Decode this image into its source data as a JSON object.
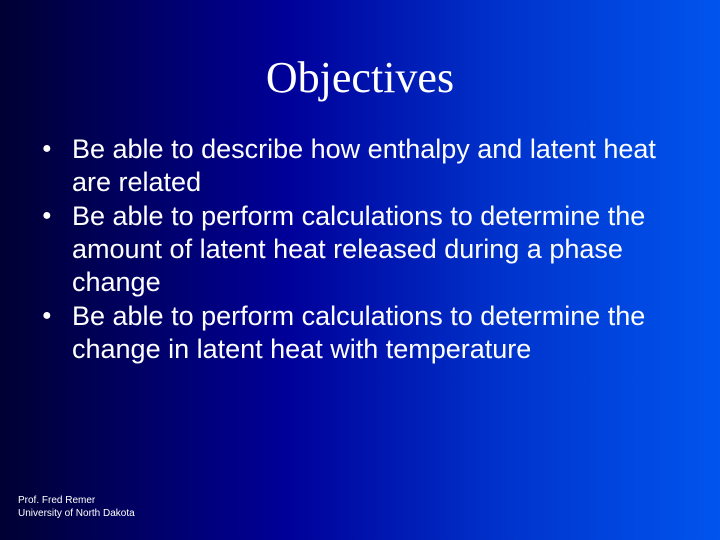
{
  "title": "Objectives",
  "bullets": [
    "Be able to describe how enthalpy and latent heat are related",
    "Be able to perform calculations to determine the amount of latent heat released during a phase change",
    "Be able to perform calculations to determine the change in latent heat with temperature"
  ],
  "footer": {
    "line1": "Prof. Fred Remer",
    "line2": "University of North Dakota"
  },
  "colors": {
    "text": "#ffffff",
    "bg_gradient_start": "#000033",
    "bg_gradient_end": "#0055ee"
  },
  "typography": {
    "title_fontsize": 44,
    "bullet_fontsize": 27,
    "footer_fontsize": 10
  }
}
